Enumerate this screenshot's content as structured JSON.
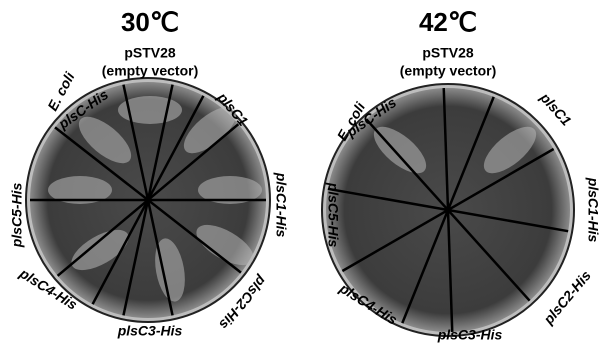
{
  "plates": [
    {
      "title": "30℃",
      "vector_line1": "pSTV28",
      "vector_line2": "(empty vector)",
      "labels": [
        "E. coli",
        "plsC-His",
        "plsC1",
        "plsC1-His",
        "plsC2-His",
        "plsC3-His",
        "plsC4-His",
        "plsC5-His"
      ]
    },
    {
      "title": "42℃",
      "vector_line1": "pSTV28",
      "vector_line2": "(empty vector)",
      "labels": [
        "E. coli",
        "plsC-His",
        "plsC1",
        "plsC1-His",
        "plsC2-His",
        "plsC3-His",
        "plsC4-His",
        "plsC5-His"
      ]
    }
  ]
}
